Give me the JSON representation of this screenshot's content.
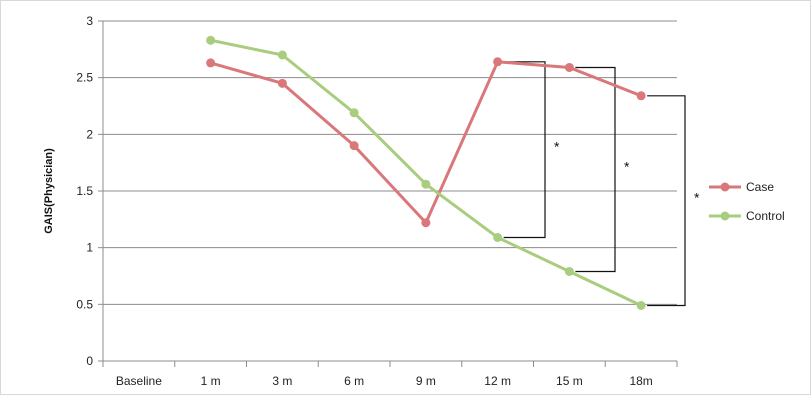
{
  "chart_data": {
    "type": "line",
    "categories": [
      "Baseline",
      "1 m",
      "3 m",
      "6 m",
      "9 m",
      "12 m",
      "15 m",
      "18m"
    ],
    "ylabel": "GAIS(Physician)",
    "xlabel": "",
    "title": "",
    "ylim": [
      0,
      3
    ],
    "yticks": [
      "0",
      "0.5",
      "1",
      "1.5",
      "2",
      "2.5",
      "3"
    ],
    "grid": true,
    "legend_position": "right",
    "series": [
      {
        "name": "Case",
        "color": "#d9777a",
        "values": [
          null,
          2.63,
          2.45,
          1.9,
          1.22,
          2.64,
          2.59,
          2.34
        ]
      },
      {
        "name": "Control",
        "color": "#a9cd7e",
        "values": [
          null,
          2.83,
          2.7,
          2.19,
          1.56,
          1.09,
          0.79,
          0.49
        ]
      }
    ],
    "annotations": [
      {
        "label": "*",
        "category": "12 m"
      },
      {
        "label": "*",
        "category": "15 m"
      },
      {
        "label": "*",
        "category": "18m"
      }
    ]
  }
}
